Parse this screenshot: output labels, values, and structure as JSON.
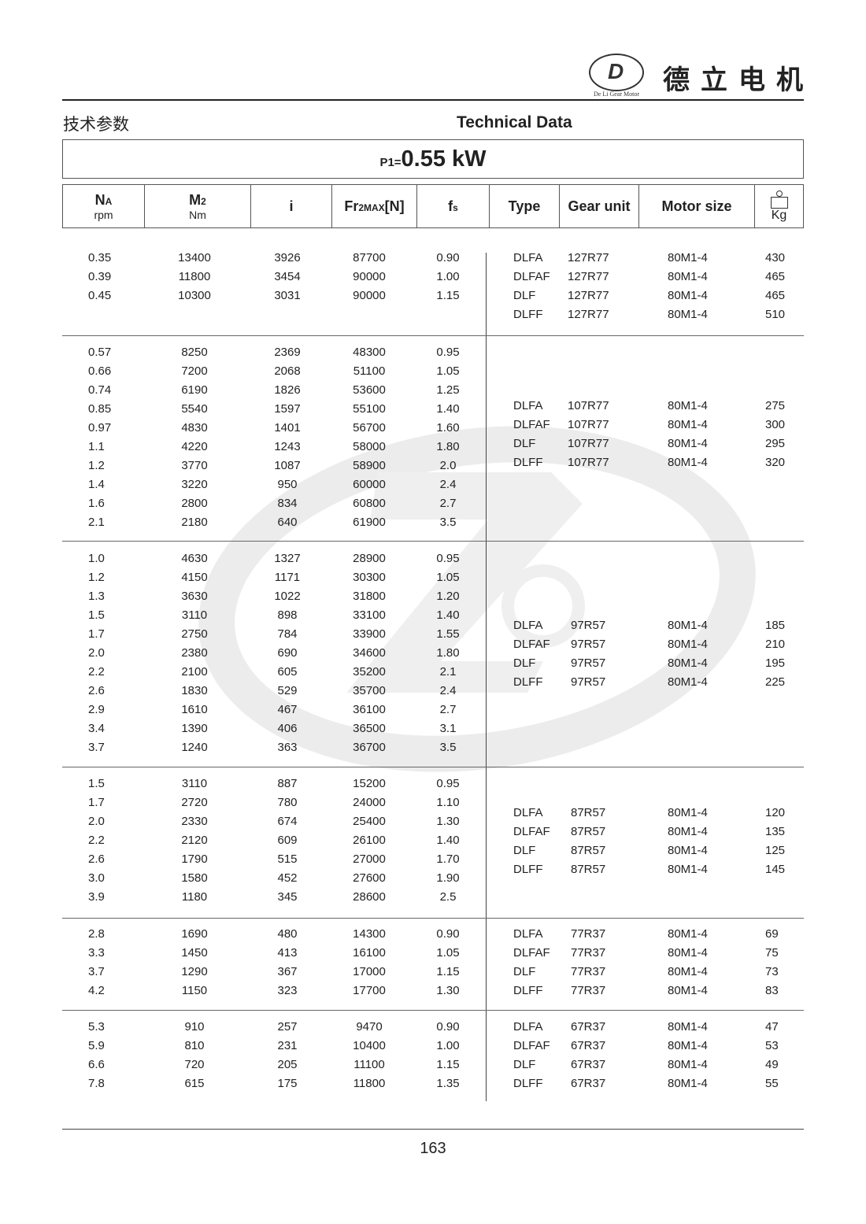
{
  "brand": {
    "name_cn": "德立电机",
    "logo_text": "De Li Gear Motor",
    "logo_letter": "D"
  },
  "header": {
    "title_cn": "技术参数",
    "title_en": "Technical Data"
  },
  "power": {
    "label": "P1=",
    "value": "0.55 kW"
  },
  "columns": {
    "na": {
      "label": "N",
      "sub": "A",
      "unit": "rpm"
    },
    "m2": {
      "label": "M",
      "sub": "2",
      "unit": "Nm"
    },
    "i": {
      "label": "i"
    },
    "fr": {
      "label": "Fr",
      "sub": "2MAX",
      "suffix": "[N]"
    },
    "fs": {
      "label": "f",
      "sub": "s"
    },
    "type": {
      "label": "Type"
    },
    "gear": {
      "label": "Gear unit"
    },
    "motor": {
      "label": "Motor size"
    },
    "kg": {
      "label": "Kg",
      "icon": "weight-icon"
    }
  },
  "groups": [
    {
      "rows": [
        [
          "0.35",
          "13400",
          "3926",
          "87700",
          "0.90"
        ],
        [
          "0.39",
          "11800",
          "3454",
          "90000",
          "1.00"
        ],
        [
          "0.45",
          "10300",
          "3031",
          "90000",
          "1.15"
        ]
      ],
      "units": [
        [
          "DLFA",
          "127R77",
          "80M1-4",
          "430"
        ],
        [
          "DLFAF",
          "127R77",
          "80M1-4",
          "465"
        ],
        [
          "DLF",
          "127R77",
          "80M1-4",
          "465"
        ],
        [
          "DLFF",
          "127R77",
          "80M1-4",
          "510"
        ]
      ]
    },
    {
      "rows": [
        [
          "0.57",
          "8250",
          "2369",
          "48300",
          "0.95"
        ],
        [
          "0.66",
          "7200",
          "2068",
          "51100",
          "1.05"
        ],
        [
          "0.74",
          "6190",
          "1826",
          "53600",
          "1.25"
        ],
        [
          "0.85",
          "5540",
          "1597",
          "55100",
          "1.40"
        ],
        [
          "0.97",
          "4830",
          "1401",
          "56700",
          "1.60"
        ],
        [
          "1.1",
          "4220",
          "1243",
          "58000",
          "1.80"
        ],
        [
          "1.2",
          "3770",
          "1087",
          "58900",
          "2.0"
        ],
        [
          "1.4",
          "3220",
          "950",
          "60000",
          "2.4"
        ],
        [
          "1.6",
          "2800",
          "834",
          "60800",
          "2.7"
        ],
        [
          "2.1",
          "2180",
          "640",
          "61900",
          "3.5"
        ]
      ],
      "units": [
        [
          "DLFA",
          "107R77",
          "80M1-4",
          "275"
        ],
        [
          "DLFAF",
          "107R77",
          "80M1-4",
          "300"
        ],
        [
          "DLF",
          "107R77",
          "80M1-4",
          "295"
        ],
        [
          "DLFF",
          "107R77",
          "80M1-4",
          "320"
        ]
      ]
    },
    {
      "rows": [
        [
          "1.0",
          "4630",
          "1327",
          "28900",
          "0.95"
        ],
        [
          "1.2",
          "4150",
          "1171",
          "30300",
          "1.05"
        ],
        [
          "1.3",
          "3630",
          "1022",
          "31800",
          "1.20"
        ],
        [
          "1.5",
          "3110",
          "898",
          "33100",
          "1.40"
        ],
        [
          "1.7",
          "2750",
          "784",
          "33900",
          "1.55"
        ],
        [
          "2.0",
          "2380",
          "690",
          "34600",
          "1.80"
        ],
        [
          "2.2",
          "2100",
          "605",
          "35200",
          "2.1"
        ],
        [
          "2.6",
          "1830",
          "529",
          "35700",
          "2.4"
        ],
        [
          "2.9",
          "1610",
          "467",
          "36100",
          "2.7"
        ],
        [
          "3.4",
          "1390",
          "406",
          "36500",
          "3.1"
        ],
        [
          "3.7",
          "1240",
          "363",
          "36700",
          "3.5"
        ]
      ],
      "units": [
        [
          "DLFA",
          "97R57",
          "80M1-4",
          "185"
        ],
        [
          "DLFAF",
          "97R57",
          "80M1-4",
          "210"
        ],
        [
          "DLF",
          "97R57",
          "80M1-4",
          "195"
        ],
        [
          "DLFF",
          "97R57",
          "80M1-4",
          "225"
        ]
      ]
    },
    {
      "rows": [
        [
          "1.5",
          "3110",
          "887",
          "15200",
          "0.95"
        ],
        [
          "1.7",
          "2720",
          "780",
          "24000",
          "1.10"
        ],
        [
          "2.0",
          "2330",
          "674",
          "25400",
          "1.30"
        ],
        [
          "2.2",
          "2120",
          "609",
          "26100",
          "1.40"
        ],
        [
          "2.6",
          "1790",
          "515",
          "27000",
          "1.70"
        ],
        [
          "3.0",
          "1580",
          "452",
          "27600",
          "1.90"
        ],
        [
          "3.9",
          "1180",
          "345",
          "28600",
          "2.5"
        ]
      ],
      "units": [
        [
          "DLFA",
          "87R57",
          "80M1-4",
          "120"
        ],
        [
          "DLFAF",
          "87R57",
          "80M1-4",
          "135"
        ],
        [
          "DLF",
          "87R57",
          "80M1-4",
          "125"
        ],
        [
          "DLFF",
          "87R57",
          "80M1-4",
          "145"
        ]
      ]
    },
    {
      "rows": [
        [
          "2.8",
          "1690",
          "480",
          "14300",
          "0.90"
        ],
        [
          "3.3",
          "1450",
          "413",
          "16100",
          "1.05"
        ],
        [
          "3.7",
          "1290",
          "367",
          "17000",
          "1.15"
        ],
        [
          "4.2",
          "1150",
          "323",
          "17700",
          "1.30"
        ]
      ],
      "units": [
        [
          "DLFA",
          "77R37",
          "80M1-4",
          "69"
        ],
        [
          "DLFAF",
          "77R37",
          "80M1-4",
          "75"
        ],
        [
          "DLF",
          "77R37",
          "80M1-4",
          "73"
        ],
        [
          "DLFF",
          "77R37",
          "80M1-4",
          "83"
        ]
      ]
    },
    {
      "rows": [
        [
          "5.3",
          "910",
          "257",
          "9470",
          "0.90"
        ],
        [
          "5.9",
          "810",
          "231",
          "10400",
          "1.00"
        ],
        [
          "6.6",
          "720",
          "205",
          "11100",
          "1.15"
        ],
        [
          "7.8",
          "615",
          "175",
          "11800",
          "1.35"
        ]
      ],
      "units": [
        [
          "DLFA",
          "67R37",
          "80M1-4",
          "47"
        ],
        [
          "DLFAF",
          "67R37",
          "80M1-4",
          "53"
        ],
        [
          "DLF",
          "67R37",
          "80M1-4",
          "49"
        ],
        [
          "DLFF",
          "67R37",
          "80M1-4",
          "55"
        ]
      ]
    }
  ],
  "footer": {
    "page_number": "163"
  }
}
